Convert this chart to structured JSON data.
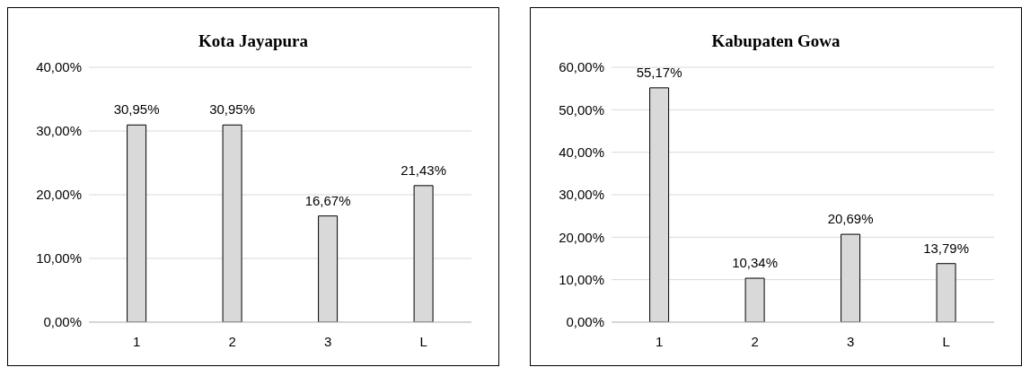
{
  "chart_data": [
    {
      "type": "bar",
      "title": "Kota Jayapura",
      "categories": [
        "1",
        "2",
        "3",
        "L"
      ],
      "values": [
        30.95,
        30.95,
        16.67,
        21.43
      ],
      "value_labels": [
        "30,95%",
        "30,95%",
        "16,67%",
        "21,43%"
      ],
      "color": "#d9d9d9",
      "ylim": [
        0,
        40
      ],
      "yticks": [
        {
          "value": 0,
          "label": "0,00%"
        },
        {
          "value": 10,
          "label": "10,00%"
        },
        {
          "value": 20,
          "label": "20,00%"
        },
        {
          "value": 30,
          "label": "30,00%"
        },
        {
          "value": 40,
          "label": "40,00%"
        }
      ],
      "grid": "y"
    },
    {
      "type": "bar",
      "title": "Kabupaten Gowa",
      "categories": [
        "1",
        "2",
        "3",
        "L"
      ],
      "values": [
        55.17,
        10.34,
        20.69,
        13.79
      ],
      "value_labels": [
        "55,17%",
        "10,34%",
        "20,69%",
        "13,79%"
      ],
      "color": "#d9d9d9",
      "ylim": [
        0,
        60
      ],
      "yticks": [
        {
          "value": 0,
          "label": "0,00%"
        },
        {
          "value": 10,
          "label": "10,00%"
        },
        {
          "value": 20,
          "label": "20,00%"
        },
        {
          "value": 30,
          "label": "30,00%"
        },
        {
          "value": 40,
          "label": "40,00%"
        },
        {
          "value": 50,
          "label": "50,00%"
        },
        {
          "value": 60,
          "label": "60,00%"
        }
      ],
      "grid": "y"
    }
  ]
}
